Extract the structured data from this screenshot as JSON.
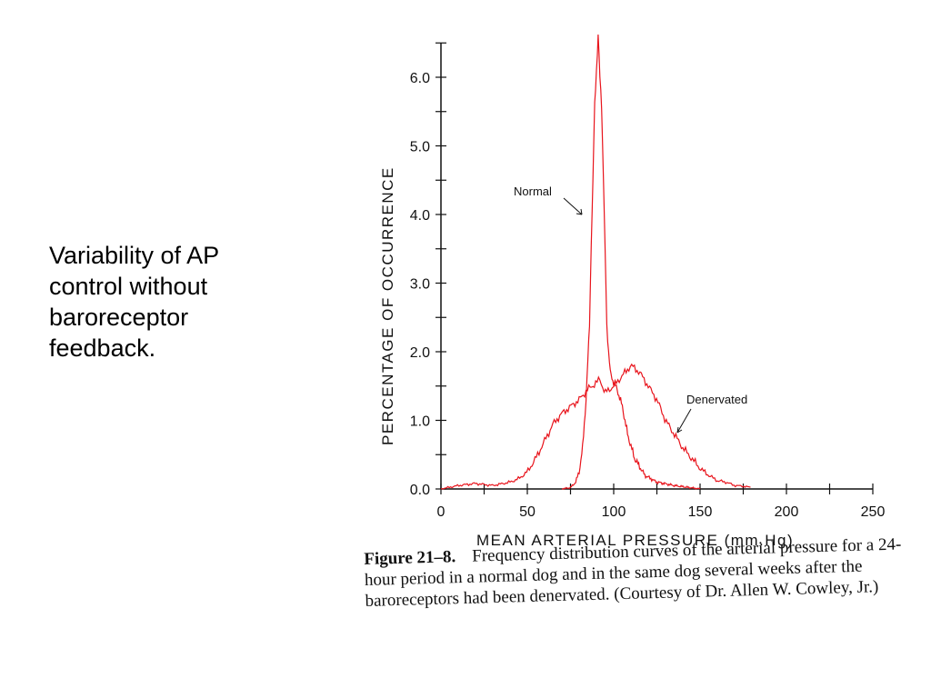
{
  "slide": {
    "text_lines": [
      "Variability of AP",
      "control without",
      "baroreceptor",
      "feedback."
    ]
  },
  "figure": {
    "caption_label": "Figure 21–8.",
    "caption_text": "Frequency distribution curves of the arterial pressure for a 24-hour period in a normal dog and in the same dog several weeks after the baroreceptors had been denervated. (Courtesy of Dr. Allen W. Cowley, Jr.)"
  },
  "colors": {
    "curve": "#e8141c",
    "axis": "#111111"
  },
  "chart_data": {
    "type": "line",
    "title": "",
    "xlabel": "MEAN ARTERIAL PRESSURE (mm.Hg)",
    "ylabel": "PERCENTAGE OF OCCURRENCE",
    "xlim": [
      0,
      250
    ],
    "ylim": [
      0,
      6.5
    ],
    "x_ticks": [
      "0",
      "50",
      "100",
      "150",
      "200",
      "250"
    ],
    "y_ticks": [
      "0.0",
      "1.0",
      "2.0",
      "3.0",
      "4.0",
      "5.0",
      "6.0"
    ],
    "grid": false,
    "series": [
      {
        "name": "Normal",
        "x": [
          70,
          75,
          78,
          80,
          82,
          84,
          86,
          87,
          88,
          89,
          90,
          91,
          92,
          93,
          94,
          95,
          96,
          97,
          98,
          100,
          102,
          105,
          108,
          112,
          118,
          125,
          135,
          150
        ],
        "y": [
          0.0,
          0.02,
          0.1,
          0.25,
          0.6,
          1.3,
          2.4,
          3.6,
          4.5,
          5.6,
          6.1,
          6.6,
          6.0,
          5.6,
          4.6,
          3.5,
          2.4,
          2.0,
          1.7,
          1.55,
          1.45,
          1.2,
          0.8,
          0.45,
          0.2,
          0.1,
          0.05,
          0.0
        ]
      },
      {
        "name": "Denervated",
        "x": [
          0,
          10,
          20,
          30,
          40,
          45,
          50,
          55,
          60,
          65,
          70,
          75,
          80,
          85,
          90,
          92,
          95,
          100,
          105,
          110,
          115,
          120,
          125,
          130,
          135,
          140,
          145,
          150,
          155,
          160,
          165,
          170,
          175,
          180
        ],
        "y": [
          0.0,
          0.05,
          0.08,
          0.05,
          0.1,
          0.15,
          0.25,
          0.45,
          0.7,
          0.95,
          1.1,
          1.2,
          1.3,
          1.45,
          1.55,
          1.6,
          1.4,
          1.5,
          1.65,
          1.8,
          1.7,
          1.5,
          1.3,
          1.0,
          0.8,
          0.6,
          0.45,
          0.3,
          0.2,
          0.12,
          0.1,
          0.05,
          0.04,
          0.02
        ]
      }
    ],
    "annotations": [
      "Normal",
      "Denervated"
    ]
  }
}
